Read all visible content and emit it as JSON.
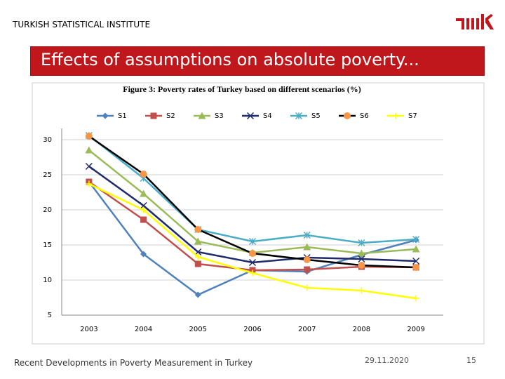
{
  "header": {
    "title": "TURKISH STATISTICAL INSTITUTE",
    "slide_title": "Effects of assumptions on absolute poverty..."
  },
  "footer": {
    "text": "Recent Developments in Poverty Measurement in Turkey",
    "date": "29.11.2020",
    "page": "15"
  },
  "chart_data": {
    "type": "line",
    "title": "Figure 3:  Poverty rates of Turkey based on different scenarios (%)",
    "categories": [
      "2003",
      "2004",
      "2005",
      "2006",
      "2007",
      "2008",
      "2009"
    ],
    "ylim": [
      5,
      30
    ],
    "yticks": [
      5,
      10,
      15,
      20,
      25,
      30
    ],
    "grid": true,
    "legend": "top",
    "series": [
      {
        "name": "S1",
        "color": "#4f81bd",
        "marker": "diamond",
        "values": [
          24,
          13.7,
          7.9,
          11.4,
          11.2,
          13.6,
          15.7
        ]
      },
      {
        "name": "S2",
        "color": "#c0504d",
        "marker": "square",
        "values": [
          24,
          18.6,
          12.3,
          11.4,
          11.5,
          11.9,
          11.8
        ]
      },
      {
        "name": "S3",
        "color": "#9bbb59",
        "marker": "triangle",
        "values": [
          28.5,
          22.3,
          15.5,
          13.9,
          14.7,
          13.8,
          14.4
        ]
      },
      {
        "name": "S4",
        "color": "#1f2a6b",
        "marker": "x",
        "values": [
          26.2,
          20.6,
          14.0,
          12.5,
          13.2,
          13.0,
          12.7
        ]
      },
      {
        "name": "S5",
        "color": "#4bacc6",
        "marker": "star",
        "values": [
          30.6,
          24.5,
          17.2,
          15.5,
          16.4,
          15.3,
          15.8
        ]
      },
      {
        "name": "S6",
        "color": "#000000",
        "marker": "circle",
        "marker_color": "#f79646",
        "values": [
          30.5,
          25.1,
          17.2,
          13.8,
          12.9,
          12.1,
          11.8
        ]
      },
      {
        "name": "S7",
        "color": "#ffff00",
        "marker": "plus",
        "values": [
          23.7,
          20.0,
          13.3,
          11.0,
          8.9,
          8.5,
          7.4
        ]
      }
    ]
  }
}
